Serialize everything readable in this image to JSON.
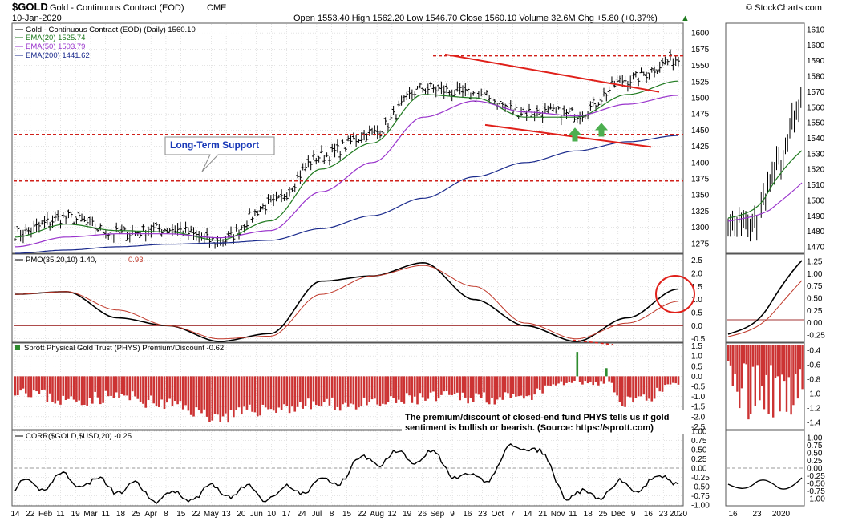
{
  "header": {
    "symbol": "$GOLD",
    "name": "Gold - Continuous Contract (EOD)",
    "exchange": "CME",
    "date": "10-Jan-2020",
    "ohlc": "Open 1553.40  High 1562.20  Low 1546.70  Close 1560.10  Volume 32.6M  Chg +5.80 (+0.37%)",
    "chg_arrow": "▲",
    "copyright": "© StockCharts.com"
  },
  "price_panel": {
    "title": "Gold - Continuous Contract (EOD) (Daily) 1560.10",
    "legend": [
      {
        "label": "EMA(20) 1525.74",
        "color": "#1f7a1f"
      },
      {
        "label": "EMA(50) 1503.79",
        "color": "#9933cc"
      },
      {
        "label": "EMA(200) 1441.62",
        "color": "#1a2a8c"
      }
    ],
    "annotation": "Long-Term Support",
    "y_ticks": [
      "1600",
      "1575",
      "1550",
      "1525",
      "1500",
      "1475",
      "1450",
      "1425",
      "1400",
      "1375",
      "1350",
      "1325",
      "1300",
      "1275"
    ],
    "y_ticks_right": [
      "1610",
      "1600",
      "1590",
      "1580",
      "1570",
      "1560",
      "1550",
      "1540",
      "1530",
      "1520",
      "1510",
      "1500",
      "1490",
      "1480",
      "1470"
    ]
  },
  "pmo_panel": {
    "title": "PMO(35,20,10) 1.40,",
    "signal_value": "0.93",
    "y_ticks": [
      "2.5",
      "2.0",
      "1.5",
      "1.0",
      "0.5",
      "0.0",
      "-0.5"
    ],
    "y_ticks_right": [
      "1.25",
      "1.00",
      "0.75",
      "0.50",
      "0.25",
      "0.00",
      "-0.25"
    ]
  },
  "phys_panel": {
    "title": "Sprott Physical Gold Trust (PHYS) Premium/Discount -0.62",
    "note_line1": "The premium/discount of closed-end fund PHYS tells us if gold",
    "note_line2": "sentiment is bullish or bearish. (Source: https://sprott.com)",
    "y_ticks": [
      "1.5",
      "1.0",
      "0.5",
      "0.0",
      "-0.5",
      "-1.0",
      "-1.5",
      "-2.0",
      "-2.5"
    ],
    "y_ticks_right": [
      "-0.4",
      "-0.6",
      "-0.8",
      "-1.0",
      "-1.2",
      "-1.4"
    ]
  },
  "corr_panel": {
    "title": "CORR($GOLD,$USD,20) -0.25",
    "y_ticks": [
      "1.00",
      "0.75",
      "0.50",
      "0.25",
      "0.00",
      "-0.25",
      "-0.50",
      "-0.75",
      "-1.00"
    ],
    "y_ticks_right": [
      "1.00",
      "0.75",
      "0.50",
      "0.25",
      "0.00",
      "-0.25",
      "-0.50",
      "-0.75",
      "-1.00"
    ]
  },
  "x_labels": [
    "14",
    "22",
    "Feb",
    "11",
    "19",
    "Mar",
    "11",
    "18",
    "25",
    "Apr",
    "8",
    "15",
    "22",
    "May",
    "13",
    "20",
    "Jun",
    "10",
    "17",
    "24",
    "Jul",
    "8",
    "15",
    "22",
    "Aug",
    "12",
    "19",
    "26",
    "Sep",
    "9",
    "16",
    "23",
    "Oct",
    "7",
    "14",
    "21",
    "Nov",
    "11",
    "18",
    "25",
    "Dec",
    "9",
    "16",
    "23",
    "2020"
  ],
  "x_labels_right": [
    "16",
    "23",
    "2020"
  ],
  "colors": {
    "price_bar": "#000000",
    "ema20": "#1f7a1f",
    "ema50": "#9933cc",
    "ema200": "#1a2a8c",
    "pmo": "#000000",
    "pmo_signal": "#c0392b",
    "trend": "#e0201a",
    "support": "#d0201a",
    "hist_neg": "#cc3333",
    "hist_pos": "#2e8b2e",
    "arrow": "#4caf50",
    "annotation_text": "#1a3ab8",
    "grid": "#c8c8c8",
    "zero_line": "#a33333"
  },
  "chart_data": [
    {
      "type": "candlestick",
      "title": "Gold - Continuous Contract (EOD) (Daily) 1560.10",
      "x": [
        "Jan-14",
        "Feb",
        "Mar",
        "Apr",
        "May",
        "Jun",
        "Jul",
        "Aug",
        "Sep",
        "Oct",
        "Nov",
        "Dec",
        "2020",
        "Jan-10"
      ],
      "series": [
        {
          "name": "Price (close)",
          "values": [
            1290,
            1315,
            1290,
            1298,
            1278,
            1335,
            1410,
            1445,
            1515,
            1505,
            1478,
            1475,
            1528,
            1560
          ]
        },
        {
          "name": "EMA(20) 1525.74",
          "values": [
            1285,
            1305,
            1295,
            1293,
            1280,
            1310,
            1390,
            1430,
            1505,
            1500,
            1470,
            1470,
            1505,
            1525.74
          ]
        },
        {
          "name": "EMA(50) 1503.79",
          "values": [
            1270,
            1285,
            1290,
            1290,
            1284,
            1295,
            1355,
            1400,
            1470,
            1495,
            1478,
            1472,
            1490,
            1503.79
          ]
        },
        {
          "name": "EMA(200) 1441.62",
          "values": [
            1260,
            1265,
            1270,
            1274,
            1276,
            1280,
            1298,
            1318,
            1345,
            1378,
            1400,
            1418,
            1432,
            1441.62
          ]
        }
      ],
      "support_levels": [
        1443,
        1372,
        1565
      ],
      "ylim": [
        1260,
        1615
      ],
      "grid": true,
      "legend": "top-left"
    },
    {
      "type": "line",
      "title": "PMO(35,20,10) 1.40, 0.93",
      "x": [
        "Jan-14",
        "Feb",
        "Mar",
        "Apr",
        "May",
        "Jun",
        "Jul",
        "Aug",
        "Sep",
        "Oct",
        "Nov",
        "Dec",
        "2020",
        "Jan-10"
      ],
      "series": [
        {
          "name": "PMO",
          "values": [
            1.2,
            1.3,
            0.3,
            0.0,
            -0.6,
            -0.3,
            1.7,
            1.9,
            2.4,
            1.0,
            0.0,
            -0.6,
            0.3,
            1.4
          ]
        },
        {
          "name": "Signal",
          "values": [
            1.2,
            1.3,
            0.6,
            0.0,
            -0.5,
            -0.4,
            1.2,
            1.9,
            2.3,
            1.5,
            0.1,
            -0.5,
            0.1,
            0.93
          ]
        }
      ],
      "ylim": [
        -0.6,
        2.7
      ],
      "grid": true
    },
    {
      "type": "bar",
      "title": "Sprott Physical Gold Trust (PHYS) Premium/Discount -0.62",
      "x": [
        "Jan-14",
        "Feb",
        "Mar",
        "Apr",
        "May",
        "Jun",
        "Jul",
        "Aug",
        "Sep",
        "Oct",
        "Nov",
        "Dec",
        "2020",
        "Jan-10"
      ],
      "values": [
        -0.6,
        -1.2,
        -1.0,
        -1.4,
        -2.0,
        -1.6,
        -1.4,
        -1.4,
        -1.1,
        -1.0,
        -1.2,
        1.2,
        -1.2,
        -0.62
      ],
      "ylim": [
        -2.6,
        1.6
      ],
      "grid": true
    },
    {
      "type": "line",
      "title": "CORR($GOLD,$USD,20) -0.25",
      "x": [
        "Jan-14",
        "Feb",
        "Mar",
        "Apr",
        "May",
        "Jun",
        "Jul",
        "Aug",
        "Sep",
        "Oct",
        "Nov",
        "Dec",
        "2020",
        "Jan-10"
      ],
      "series": [
        {
          "name": "CORR",
          "values": [
            -0.55,
            -0.3,
            -0.5,
            -0.8,
            -0.6,
            -0.7,
            -0.45,
            0.25,
            0.35,
            -0.35,
            0.65,
            -0.8,
            -0.5,
            -0.25
          ]
        }
      ],
      "ylim": [
        -1.0,
        1.0
      ],
      "grid": true
    }
  ]
}
